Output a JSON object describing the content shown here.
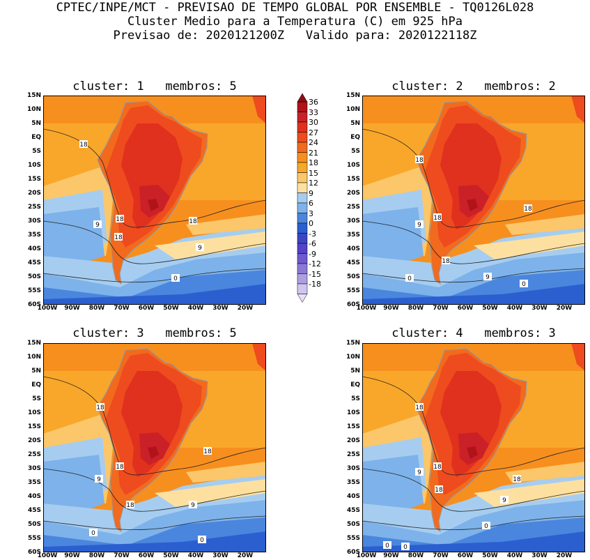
{
  "header": {
    "line1": "CPTEC/INPE/MCT - PREVISAO DE TEMPO GLOBAL POR ENSEMBLE - TQ0126L028",
    "line2": "Cluster Medio para a Temperatura (C) em 925 hPa",
    "line3": "Previsao de: 2020121200Z   Valido para: 2020122118Z"
  },
  "lat_labels": [
    "15N",
    "10N",
    "5N",
    "EQ",
    "5S",
    "10S",
    "15S",
    "20S",
    "25S",
    "30S",
    "35S",
    "40S",
    "45S",
    "50S",
    "55S",
    "60S"
  ],
  "lon_labels": [
    "100W",
    "90W",
    "80W",
    "70W",
    "60W",
    "50W",
    "40W",
    "30W",
    "20W"
  ],
  "colorbar": {
    "labels": [
      "36",
      "33",
      "30",
      "27",
      "24",
      "21",
      "18",
      "15",
      "12",
      "9",
      "6",
      "3",
      "0",
      "-3",
      "-6",
      "-9",
      "-12",
      "-15",
      "-18"
    ],
    "colors": [
      "#b0131a",
      "#c92127",
      "#e0301e",
      "#ee4b1f",
      "#f26a1d",
      "#f78f1e",
      "#f9a72a",
      "#fbc76a",
      "#fde0a0",
      "#a6cdf0",
      "#7eb2ea",
      "#4a86dd",
      "#2b5fd0",
      "#3b45c4",
      "#5443c8",
      "#6e5acd",
      "#8c79d6",
      "#ad9fe2",
      "#cfc5ef"
    ]
  },
  "panels": [
    {
      "title": "cluster: 1   membros: 5",
      "contour_labels": [
        "18",
        "18",
        "18",
        "18",
        "9",
        "9",
        "0"
      ]
    },
    {
      "title": "cluster: 2   membros: 2",
      "contour_labels": [
        "18",
        "18",
        "18",
        "18",
        "9",
        "9",
        "0",
        "0"
      ]
    },
    {
      "title": "cluster: 3   membros: 5",
      "contour_labels": [
        "18",
        "18",
        "18",
        "18",
        "9",
        "9",
        "0",
        "0"
      ]
    },
    {
      "title": "cluster: 4   membros: 3",
      "contour_labels": [
        "18",
        "18",
        "18",
        "18",
        "9",
        "9",
        "0",
        "0",
        "0"
      ]
    }
  ]
}
